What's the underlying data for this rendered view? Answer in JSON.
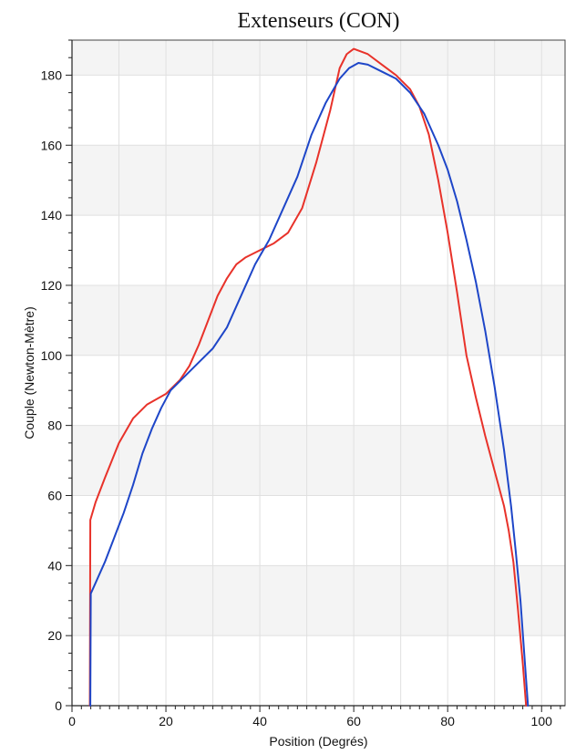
{
  "chart_data": {
    "type": "line",
    "title": "Extenseurs (CON)",
    "xlabel": "Position (Degrés)",
    "ylabel": "Couple (Newton-Mètre)",
    "xlim": [
      0,
      105
    ],
    "ylim": [
      0,
      190
    ],
    "xticks": [
      0,
      20,
      40,
      60,
      80,
      100
    ],
    "yticks": [
      0,
      20,
      40,
      60,
      80,
      100,
      120,
      140,
      160,
      180
    ],
    "grid": true,
    "legend": "none",
    "series": [
      {
        "color": "#e8322a",
        "points": [
          [
            3.8,
            0
          ],
          [
            3.9,
            53
          ],
          [
            5,
            58
          ],
          [
            7,
            65
          ],
          [
            10,
            75
          ],
          [
            13,
            82
          ],
          [
            16,
            86
          ],
          [
            20,
            89
          ],
          [
            23,
            93
          ],
          [
            25,
            97
          ],
          [
            27,
            103
          ],
          [
            29,
            110
          ],
          [
            31,
            117
          ],
          [
            33,
            122
          ],
          [
            35,
            126
          ],
          [
            37,
            128
          ],
          [
            40,
            130
          ],
          [
            43,
            132
          ],
          [
            46,
            135
          ],
          [
            49,
            142
          ],
          [
            52,
            155
          ],
          [
            55,
            170
          ],
          [
            57,
            182
          ],
          [
            58.5,
            186
          ],
          [
            60,
            187.5
          ],
          [
            63,
            186
          ],
          [
            66,
            183
          ],
          [
            69,
            180
          ],
          [
            72,
            176
          ],
          [
            74,
            171
          ],
          [
            76,
            163
          ],
          [
            78,
            150
          ],
          [
            80,
            135
          ],
          [
            82,
            118
          ],
          [
            84,
            100
          ],
          [
            86,
            88
          ],
          [
            88,
            77
          ],
          [
            90,
            67
          ],
          [
            92,
            57
          ],
          [
            93,
            50
          ],
          [
            94,
            41
          ],
          [
            95,
            27
          ],
          [
            96,
            12
          ],
          [
            96.7,
            0
          ]
        ]
      },
      {
        "color": "#1e46c8",
        "points": [
          [
            3.9,
            0
          ],
          [
            4.0,
            32
          ],
          [
            5,
            35
          ],
          [
            7,
            41
          ],
          [
            9,
            48
          ],
          [
            11,
            55
          ],
          [
            13,
            63
          ],
          [
            15,
            72
          ],
          [
            17,
            79
          ],
          [
            19,
            85
          ],
          [
            21,
            90
          ],
          [
            24,
            94
          ],
          [
            27,
            98
          ],
          [
            30,
            102
          ],
          [
            33,
            108
          ],
          [
            36,
            117
          ],
          [
            39,
            126
          ],
          [
            42,
            133
          ],
          [
            45,
            142
          ],
          [
            48,
            151
          ],
          [
            51,
            163
          ],
          [
            54,
            172
          ],
          [
            57,
            179
          ],
          [
            59,
            182
          ],
          [
            61,
            183.5
          ],
          [
            63,
            183
          ],
          [
            66,
            181
          ],
          [
            69,
            179
          ],
          [
            72,
            175
          ],
          [
            75,
            169
          ],
          [
            78,
            160
          ],
          [
            80,
            153
          ],
          [
            82,
            144
          ],
          [
            84,
            133
          ],
          [
            86,
            121
          ],
          [
            88,
            107
          ],
          [
            90,
            91
          ],
          [
            92,
            73
          ],
          [
            93.5,
            57
          ],
          [
            94.5,
            44
          ],
          [
            95.5,
            30
          ],
          [
            96.3,
            15
          ],
          [
            97.1,
            0
          ]
        ]
      }
    ]
  }
}
